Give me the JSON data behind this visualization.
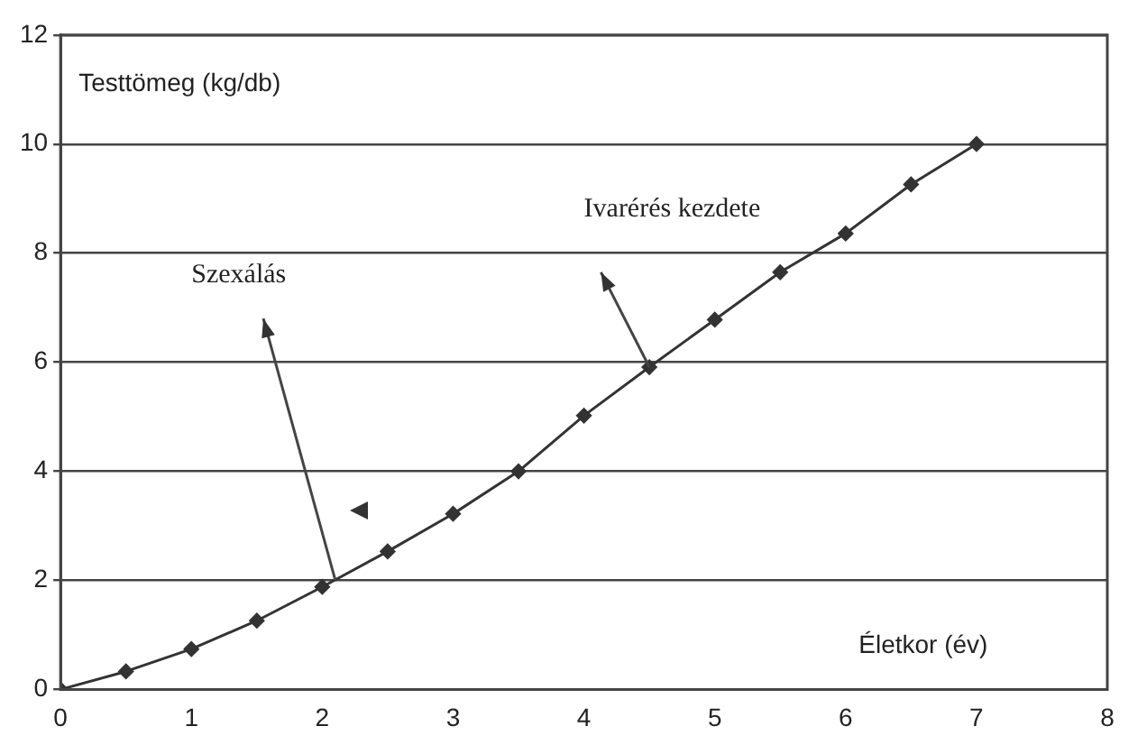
{
  "chart_data": {
    "type": "line",
    "xlabel": "Életkor (év)",
    "ylabel": "Testtömeg (kg/db)",
    "x": [
      0,
      0.5,
      1,
      1.5,
      2,
      2.5,
      3,
      3.5,
      4,
      4.5,
      5,
      5.5,
      6,
      6.5,
      7
    ],
    "series": [
      {
        "color": "#333333",
        "values": [
          0,
          0.33,
          0.74,
          1.26,
          1.88,
          2.53,
          3.22,
          4.0,
          5.02,
          5.91,
          6.78,
          7.65,
          8.36,
          9.26,
          10.0
        ]
      }
    ],
    "xlim": [
      0,
      8
    ],
    "xticks": [
      0,
      1,
      2,
      3,
      4,
      5,
      6,
      7,
      8
    ],
    "ylim": [
      0,
      12
    ],
    "yticks": [
      0,
      2,
      4,
      6,
      8,
      10,
      12
    ],
    "grid": "y",
    "legend": false,
    "marker": "diamond",
    "line_style": "solid",
    "annotations": [
      "Szexálás",
      "Ivarérés kezdete"
    ]
  }
}
